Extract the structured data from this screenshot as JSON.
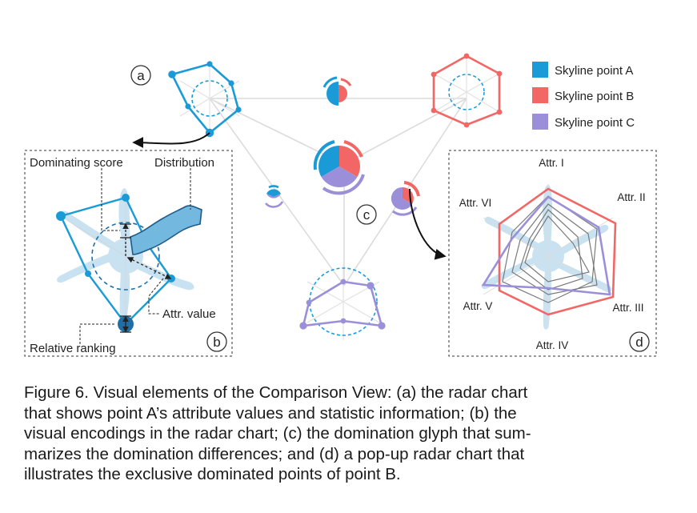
{
  "panel_letters": {
    "a": "a",
    "b": "b",
    "c": "c",
    "d": "d"
  },
  "legend": [
    {
      "label": "Skyline point A",
      "color": "#1a9bd7"
    },
    {
      "label": "Skyline point B",
      "color": "#f26766"
    },
    {
      "label": "Skyline point C",
      "color": "#9a8fd8"
    }
  ],
  "panel_b": {
    "dominating_score": "Dominating score",
    "distribution": "Distribution",
    "attr_value": "Attr. value",
    "relative_ranking": "Relative ranking"
  },
  "panel_d": {
    "attr_i": "Attr. I",
    "attr_ii": "Attr. II",
    "attr_iii": "Attr. III",
    "attr_iv": "Attr. IV",
    "attr_v": "Attr. V",
    "attr_vi": "Attr. VI"
  },
  "colors": {
    "blue": "#1a9bd7",
    "red": "#f26766",
    "purple": "#9a8fd8",
    "dark_blue": "#1f6ea6",
    "light_blue": "#c7e1f2",
    "grid": "#d8d8d8"
  },
  "caption": {
    "line1": "Figure 6.  Visual elements of the Comparison View: (a) the radar chart",
    "line2": "that shows point A’s attribute values and statistic information; (b) the",
    "line3": "visual encodings in the radar chart; (c) the domination glyph that sum-",
    "line4": "marizes the domination differences; and (d) a pop-up radar chart that",
    "line5": "illustrates the exclusive dominated points of point B."
  }
}
